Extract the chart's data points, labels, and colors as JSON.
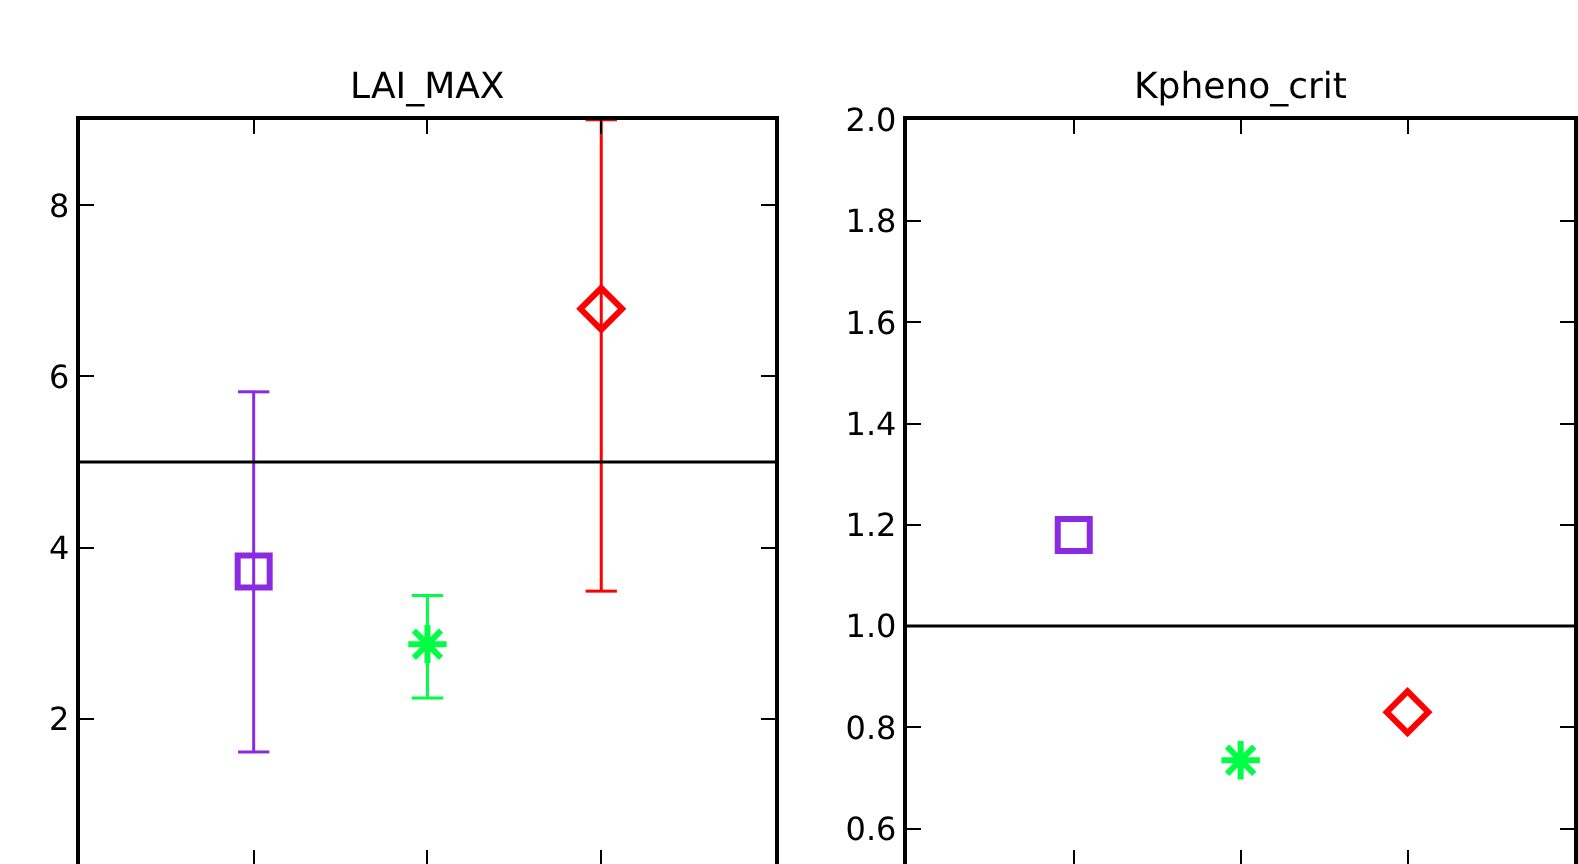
{
  "chart_data": [
    {
      "type": "scatter",
      "title": "LAI_MAX",
      "categories": [
        null,
        null,
        null
      ],
      "ylim": [
        0.3,
        9
      ],
      "yticks": [
        2,
        4,
        6,
        8
      ],
      "grid": false,
      "tick_labels": "y",
      "series": [
        {
          "color": "#8a2be2",
          "marker": "square",
          "values": [
            3.72,
            null,
            null
          ],
          "errors": [
            [
              1.61,
              5.82
            ],
            null,
            null
          ]
        },
        {
          "color": "#00ff44",
          "marker": "cross",
          "values": [
            null,
            2.87,
            null
          ],
          "errors": [
            null,
            [
              2.24,
              3.44
            ],
            null
          ]
        },
        {
          "color": "#ff0000",
          "marker": "diamond",
          "values": [
            null,
            null,
            6.79
          ],
          "errors": [
            null,
            null,
            [
              3.49,
              9.0
            ]
          ]
        }
      ],
      "ref_lines": [
        {
          "axis": "y",
          "value": 5.0,
          "color": "#000000"
        }
      ]
    },
    {
      "type": "scatter",
      "title": "Kpheno_crit",
      "categories": [
        null,
        null,
        null
      ],
      "ylim": [
        0.53,
        2.0
      ],
      "yticks": [
        {
          "value": 0.6,
          "label": "0.6"
        },
        {
          "value": 0.8,
          "label": "0.8"
        },
        {
          "value": 1.0,
          "label": "1.0"
        },
        {
          "value": 1.2,
          "label": "1.2"
        },
        {
          "value": 1.4,
          "label": "1.4"
        },
        {
          "value": 1.6,
          "label": "1.6"
        },
        {
          "value": 1.8,
          "label": "1.8"
        },
        {
          "value": 2.0,
          "label": "2.0"
        }
      ],
      "grid": false,
      "tick_labels": "y",
      "series": [
        {
          "color": "#8a2be2",
          "marker": "square",
          "values": [
            1.18,
            null,
            null
          ]
        },
        {
          "color": "#00ff44",
          "marker": "cross",
          "values": [
            null,
            0.735,
            null
          ]
        },
        {
          "color": "#ff0000",
          "marker": "diamond",
          "values": [
            null,
            null,
            0.83
          ]
        }
      ],
      "ref_lines": [
        {
          "axis": "y",
          "value": 1.0,
          "color": "#000000"
        }
      ]
    }
  ]
}
